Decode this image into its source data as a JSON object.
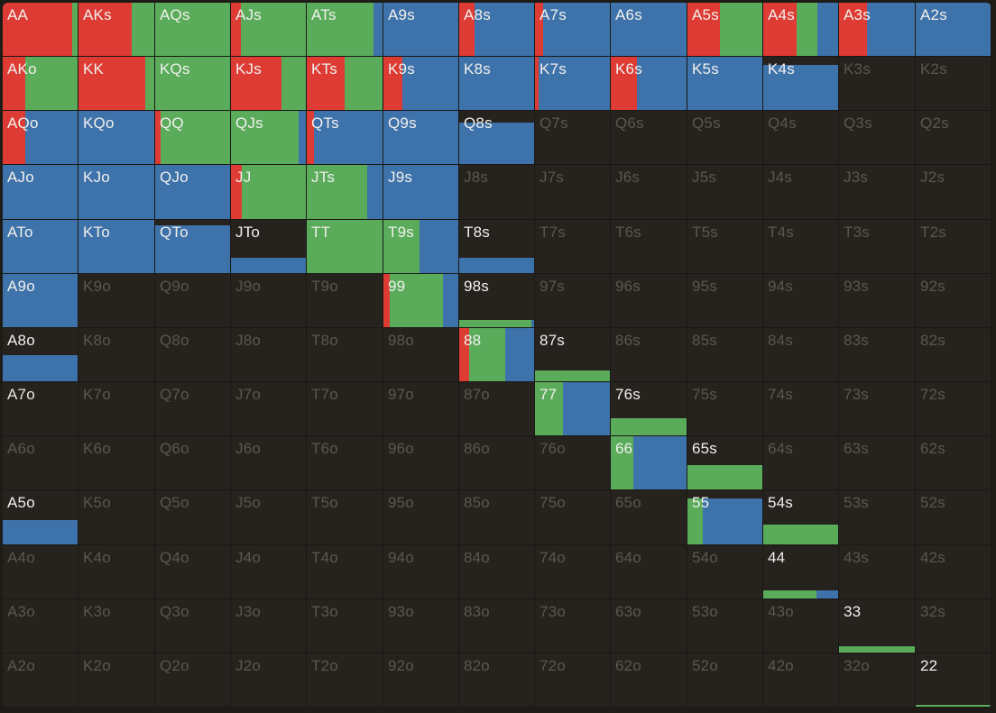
{
  "ranks": [
    "A",
    "K",
    "Q",
    "J",
    "T",
    "9",
    "8",
    "7",
    "6",
    "5",
    "4",
    "3",
    "2"
  ],
  "colors": {
    "raise": "#dd3b34",
    "call": "#5aac5b",
    "fold": "#3e72aa",
    "empty": "#26231e",
    "inactive_text": "#5a5650",
    "active_text": "#f2f0ec"
  },
  "actions": [
    "raise",
    "call",
    "fold"
  ],
  "hands": {
    "AA": {
      "f": 1,
      "m": [
        0.93,
        0.07,
        0
      ]
    },
    "AKs": {
      "f": 1,
      "m": [
        0.7,
        0.3,
        0
      ]
    },
    "AQs": {
      "f": 1,
      "m": [
        0,
        1,
        0
      ]
    },
    "AJs": {
      "f": 1,
      "m": [
        0.13,
        0.87,
        0
      ]
    },
    "ATs": {
      "f": 1,
      "m": [
        0,
        0.88,
        0.12
      ]
    },
    "A9s": {
      "f": 1,
      "m": [
        0,
        0,
        1
      ]
    },
    "A8s": {
      "f": 1,
      "m": [
        0.2,
        0,
        0.8
      ]
    },
    "A7s": {
      "f": 1,
      "m": [
        0.11,
        0,
        0.89
      ]
    },
    "A6s": {
      "f": 1,
      "m": [
        0,
        0,
        1
      ]
    },
    "A5s": {
      "f": 1,
      "m": [
        0.43,
        0.57,
        0
      ]
    },
    "A4s": {
      "f": 1,
      "m": [
        0.45,
        0.27,
        0.28
      ]
    },
    "A3s": {
      "f": 1,
      "m": [
        0.37,
        0,
        0.63
      ]
    },
    "A2s": {
      "f": 1,
      "m": [
        0,
        0,
        1
      ]
    },
    "AKo": {
      "f": 1,
      "m": [
        0.3,
        0.7,
        0
      ]
    },
    "KK": {
      "f": 1,
      "m": [
        0.88,
        0.12,
        0
      ]
    },
    "KQs": {
      "f": 1,
      "m": [
        0,
        1,
        0
      ]
    },
    "KJs": {
      "f": 1,
      "m": [
        0.67,
        0.33,
        0
      ]
    },
    "KTs": {
      "f": 1,
      "m": [
        0.5,
        0.5,
        0
      ]
    },
    "K9s": {
      "f": 1,
      "m": [
        0.25,
        0,
        0.75
      ]
    },
    "K8s": {
      "f": 1,
      "m": [
        0,
        0,
        1
      ]
    },
    "K7s": {
      "f": 1,
      "m": [
        0.05,
        0,
        0.95
      ]
    },
    "K6s": {
      "f": 1,
      "m": [
        0.35,
        0,
        0.65
      ]
    },
    "K5s": {
      "f": 1,
      "m": [
        0,
        0,
        1
      ]
    },
    "K4s": {
      "f": 0.85,
      "m": [
        0,
        0,
        1
      ]
    },
    "AQo": {
      "f": 1,
      "m": [
        0.3,
        0,
        0.7
      ]
    },
    "KQo": {
      "f": 1,
      "m": [
        0,
        0,
        1
      ]
    },
    "QQ": {
      "f": 1,
      "m": [
        0.07,
        0.93,
        0
      ]
    },
    "QJs": {
      "f": 1,
      "m": [
        0,
        0.9,
        0.1
      ]
    },
    "QTs": {
      "f": 1,
      "m": [
        0.1,
        0,
        0.9
      ]
    },
    "Q9s": {
      "f": 1,
      "m": [
        0,
        0,
        1
      ]
    },
    "Q8s": {
      "f": 0.78,
      "m": [
        0,
        0,
        1
      ]
    },
    "AJo": {
      "f": 1,
      "m": [
        0,
        0,
        1
      ]
    },
    "KJo": {
      "f": 1,
      "m": [
        0,
        0,
        1
      ]
    },
    "QJo": {
      "f": 1,
      "m": [
        0,
        0,
        1
      ]
    },
    "JJ": {
      "f": 1,
      "m": [
        0.14,
        0.86,
        0
      ]
    },
    "JTs": {
      "f": 1,
      "m": [
        0,
        0.8,
        0.2
      ]
    },
    "J9s": {
      "f": 1,
      "m": [
        0,
        0,
        1
      ]
    },
    "ATo": {
      "f": 1,
      "m": [
        0,
        0,
        1
      ]
    },
    "KTo": {
      "f": 1,
      "m": [
        0,
        0,
        1
      ]
    },
    "QTo": {
      "f": 0.9,
      "m": [
        0,
        0,
        1
      ]
    },
    "JTo": {
      "f": 0.28,
      "m": [
        0,
        0,
        1
      ]
    },
    "TT": {
      "f": 1,
      "m": [
        0,
        1,
        0
      ]
    },
    "T9s": {
      "f": 1,
      "m": [
        0,
        0.48,
        0.52
      ]
    },
    "T8s": {
      "f": 0.28,
      "m": [
        0,
        0,
        1
      ]
    },
    "A9o": {
      "f": 1,
      "m": [
        0,
        0,
        1
      ]
    },
    "99": {
      "f": 1,
      "m": [
        0.08,
        0.72,
        0.2
      ]
    },
    "98s": {
      "f": 0.14,
      "m": [
        0,
        0.96,
        0.04
      ]
    },
    "A8o": {
      "f": 0.5,
      "m": [
        0,
        0,
        1
      ]
    },
    "88": {
      "f": 1,
      "m": [
        0.13,
        0.48,
        0.39
      ]
    },
    "87s": {
      "f": 0.2,
      "m": [
        0,
        1,
        0
      ]
    },
    "A7o": {
      "f": 0,
      "m": [
        0,
        0,
        1
      ]
    },
    "77": {
      "f": 1,
      "m": [
        0,
        0.37,
        0.63
      ]
    },
    "76s": {
      "f": 0.32,
      "m": [
        0,
        1,
        0
      ]
    },
    "66": {
      "f": 1,
      "m": [
        0,
        0.3,
        0.7
      ]
    },
    "65s": {
      "f": 0.46,
      "m": [
        0,
        1,
        0
      ]
    },
    "A5o": {
      "f": 0.45,
      "m": [
        0,
        0,
        1
      ]
    },
    "55": {
      "f": 0.85,
      "m": [
        0,
        0.2,
        0.8
      ]
    },
    "54s": {
      "f": 0.36,
      "m": [
        0,
        1,
        0
      ]
    },
    "44": {
      "f": 0.16,
      "m": [
        0,
        0.71,
        0.29
      ]
    },
    "33": {
      "f": 0.12,
      "m": [
        0,
        1,
        0
      ]
    },
    "22": {
      "f": 0.03,
      "m": [
        0,
        1,
        0
      ]
    }
  },
  "played_no_fill": [
    "A7o"
  ]
}
